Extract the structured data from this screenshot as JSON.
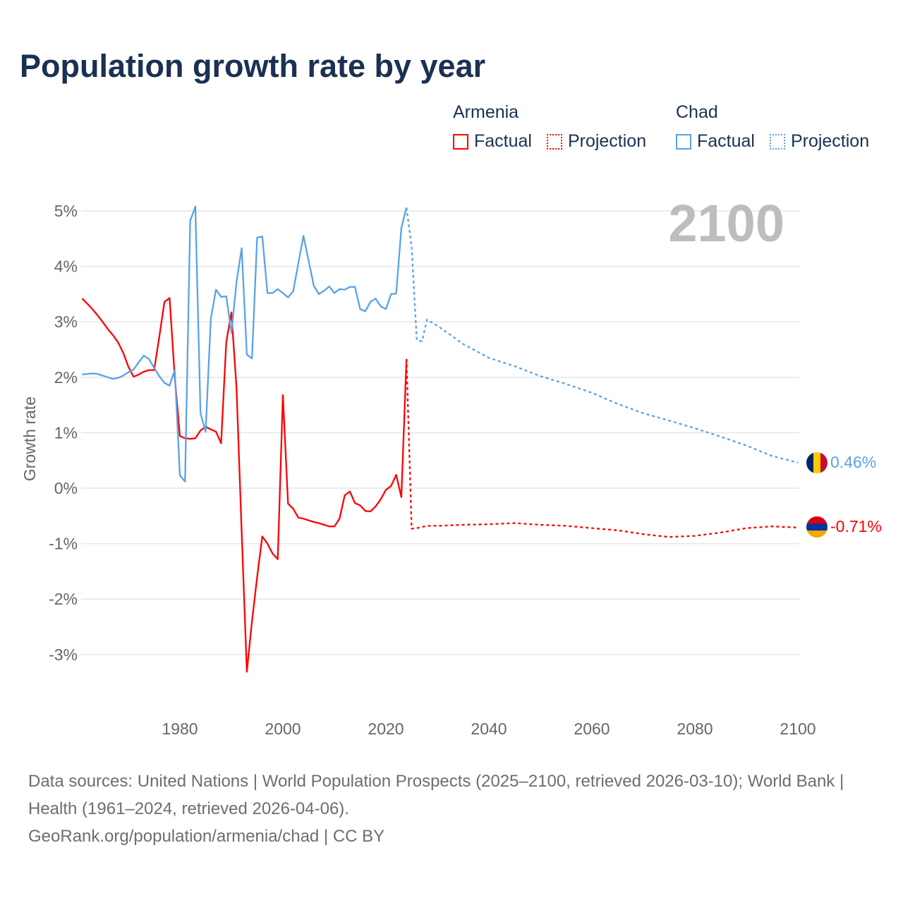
{
  "title": "Population growth rate by year",
  "legend": {
    "groups": [
      {
        "name": "Armenia",
        "color": "#ff0000",
        "factual": "Factual",
        "projection": "Projection"
      },
      {
        "name": "Chad",
        "color": "#5aa2e6",
        "factual": "Factual",
        "projection": "Projection"
      }
    ]
  },
  "footer": {
    "sources": "Data sources: United Nations | World Population Prospects (2025–2100, retrieved 2026-03-10); World Bank | Health (1961–2024, retrieved 2026-04-06).",
    "credit": "GeoRank.org/population/armenia/chad | CC BY"
  },
  "chart_data": {
    "type": "line",
    "title": "Population growth rate by year",
    "xlabel": "",
    "ylabel": "Growth rate",
    "year_label": "2100",
    "xlim": [
      1961,
      2100
    ],
    "ylim": [
      -4,
      5.3
    ],
    "x_ticks": [
      "1980",
      "2000",
      "2020",
      "2040",
      "2060",
      "2080",
      "2100"
    ],
    "x_tick_values": [
      1980,
      2000,
      2020,
      2040,
      2060,
      2080,
      2100
    ],
    "y_ticks": [
      "5%",
      "4%",
      "3%",
      "2%",
      "1%",
      "0%",
      "-1%",
      "-2%",
      "-3%"
    ],
    "y_tick_values": [
      5,
      4,
      3,
      2,
      1,
      0,
      -1,
      -2,
      -3
    ],
    "grid": true,
    "series": [
      {
        "name": "Armenia",
        "color": "#ff0000",
        "end_label": "-0.71%",
        "factual": {
          "x_start": 1961,
          "values": [
            3.42,
            3.33,
            3.23,
            3.12,
            3.0,
            2.87,
            2.76,
            2.63,
            2.44,
            2.19,
            2.01,
            2.05,
            2.1,
            2.13,
            2.13,
            2.73,
            3.36,
            3.43,
            2.01,
            0.94,
            0.9,
            0.89,
            0.9,
            1.04,
            1.11,
            1.06,
            1.02,
            0.81,
            2.63,
            3.17,
            1.8,
            -0.8,
            -3.31,
            -2.4,
            -1.6,
            -0.87,
            -1.0,
            -1.18,
            -1.28,
            1.68,
            -0.28,
            -0.37,
            -0.53,
            -0.55,
            -0.58,
            -0.61,
            -0.63,
            -0.66,
            -0.69,
            -0.69,
            -0.55,
            -0.13,
            -0.06,
            -0.27,
            -0.31,
            -0.41,
            -0.42,
            -0.33,
            -0.2,
            -0.03,
            0.04,
            0.24,
            -0.16,
            2.33
          ]
        },
        "projection": {
          "x": [
            2024,
            2025,
            2026,
            2028,
            2030,
            2035,
            2040,
            2045,
            2050,
            2055,
            2060,
            2065,
            2070,
            2075,
            2080,
            2085,
            2090,
            2095,
            2100
          ],
          "values": [
            2.33,
            -0.73,
            -0.72,
            -0.68,
            -0.68,
            -0.66,
            -0.65,
            -0.63,
            -0.66,
            -0.68,
            -0.72,
            -0.76,
            -0.83,
            -0.88,
            -0.86,
            -0.8,
            -0.72,
            -0.69,
            -0.71
          ]
        }
      },
      {
        "name": "Chad",
        "color": "#5aa2e6",
        "end_label": "0.46%",
        "factual": {
          "x_start": 1961,
          "values": [
            2.05,
            2.06,
            2.07,
            2.06,
            2.03,
            2.0,
            1.97,
            1.99,
            2.03,
            2.09,
            2.14,
            2.27,
            2.39,
            2.33,
            2.17,
            2.02,
            1.9,
            1.85,
            2.13,
            0.23,
            0.12,
            4.82,
            5.08,
            1.35,
            1.02,
            3.05,
            3.58,
            3.45,
            3.46,
            2.8,
            3.72,
            4.33,
            2.41,
            2.34,
            4.52,
            4.54,
            3.52,
            3.52,
            3.59,
            3.52,
            3.44,
            3.55,
            4.06,
            4.55,
            4.1,
            3.65,
            3.5,
            3.56,
            3.64,
            3.52,
            3.59,
            3.58,
            3.63,
            3.63,
            3.23,
            3.19,
            3.36,
            3.42,
            3.28,
            3.23,
            3.5,
            3.51,
            4.69,
            5.06
          ]
        },
        "projection": {
          "x": [
            2024,
            2025,
            2026,
            2027,
            2028,
            2030,
            2035,
            2040,
            2045,
            2050,
            2055,
            2060,
            2065,
            2070,
            2075,
            2080,
            2085,
            2090,
            2095,
            2100
          ],
          "values": [
            5.06,
            4.35,
            2.67,
            2.65,
            3.04,
            2.93,
            2.6,
            2.35,
            2.2,
            2.02,
            1.88,
            1.72,
            1.52,
            1.35,
            1.22,
            1.08,
            0.93,
            0.77,
            0.58,
            0.46
          ]
        }
      }
    ]
  }
}
